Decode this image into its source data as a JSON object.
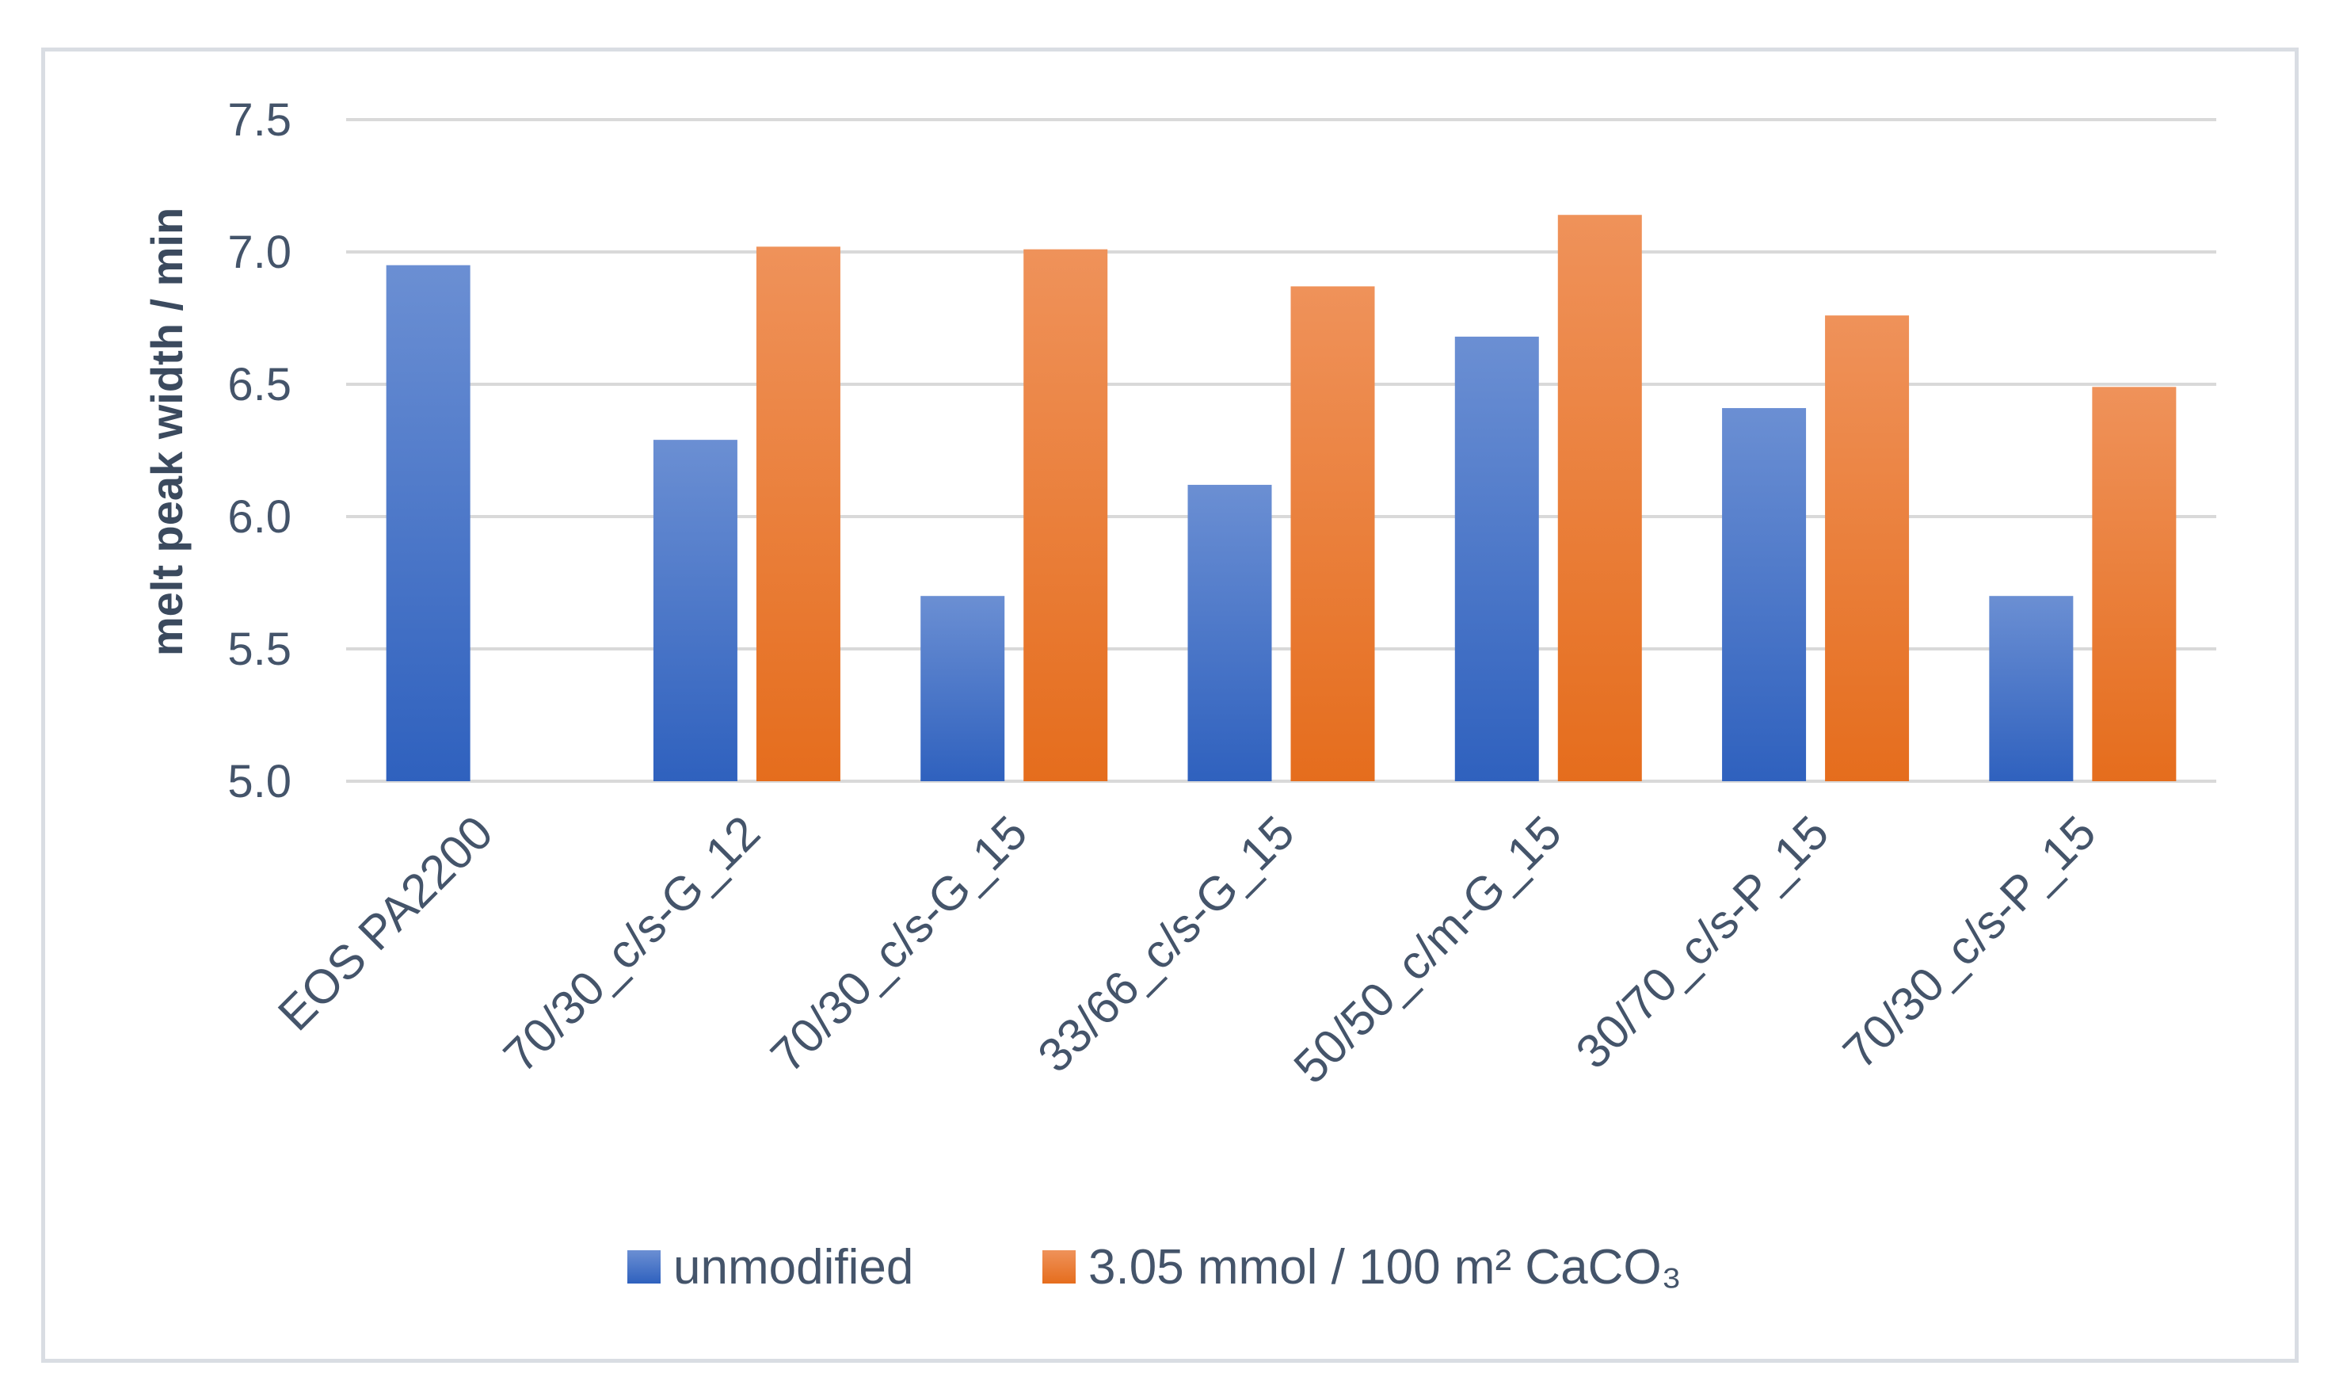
{
  "chart_data": {
    "type": "bar",
    "title": "",
    "xlabel": "",
    "ylabel": "melt peak width / min",
    "ylim": [
      5.0,
      7.5
    ],
    "yticks": [
      "5.0",
      "5.5",
      "6.0",
      "6.5",
      "7.0",
      "7.5"
    ],
    "grid": true,
    "legend_position": "bottom",
    "categories": [
      "EOS PA2200",
      "70/30_c/s-G_12",
      "70/30_c/s-G_15",
      "33/66_c/s-G_15",
      "50/50_c/m-G_15",
      "30/70_c/s-P_15",
      "70/30_c/s-P_15"
    ],
    "series": [
      {
        "name": "unmodified",
        "color": "#4472c4",
        "values": [
          6.95,
          6.29,
          5.7,
          6.12,
          6.68,
          6.41,
          5.7
        ]
      },
      {
        "name": "3.05 mmol / 100 m² CaCO₃",
        "color": "#ed7d31",
        "values": [
          null,
          7.02,
          7.01,
          6.87,
          7.14,
          6.76,
          6.49
        ]
      }
    ]
  }
}
